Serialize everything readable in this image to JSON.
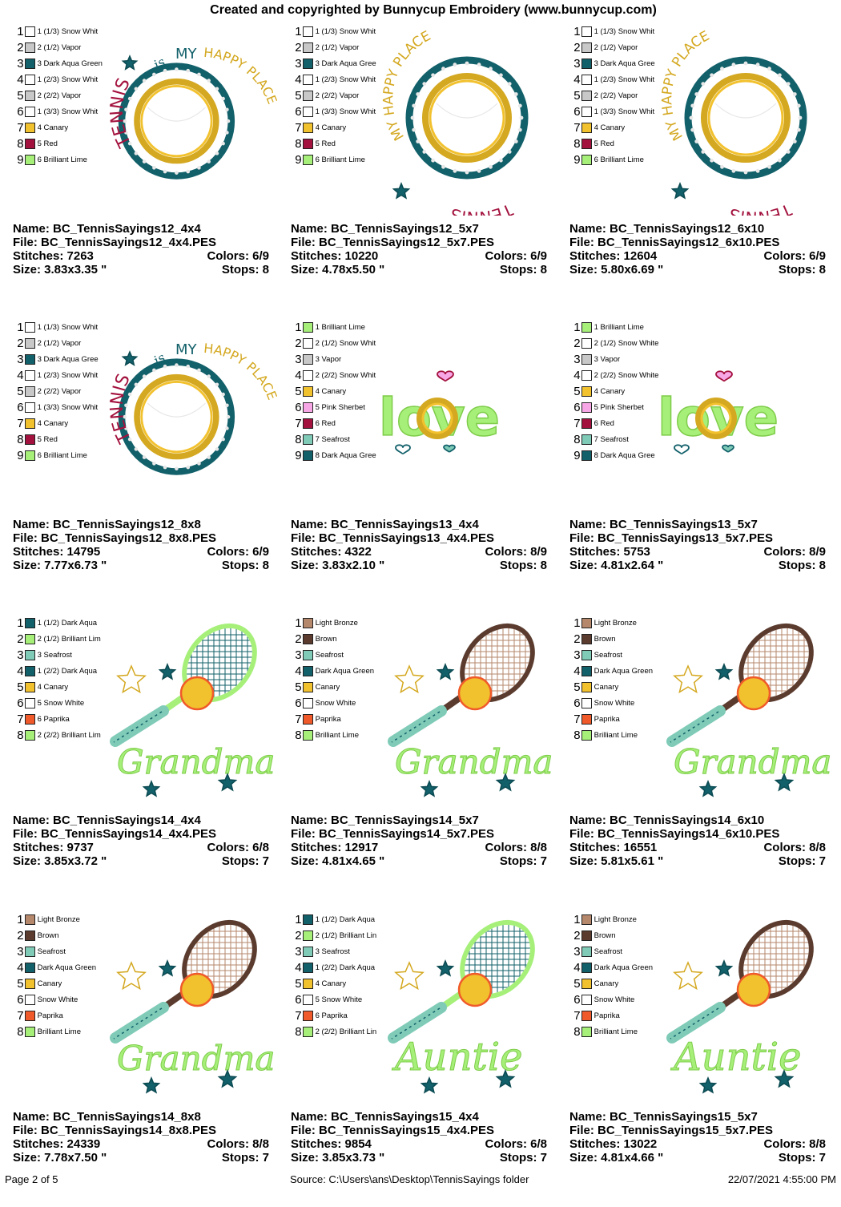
{
  "header": "Created and copyrighted by Bunnycup Embroidery (www.bunnycup.com)",
  "footer": {
    "page": "Page 2 of 5",
    "source": "Source: C:\\Users\\ans\\Desktop\\TennisSayings folder",
    "datetime": "22/07/2021 4:55:00 PM"
  },
  "designs": [
    {
      "art": "circle-a",
      "name": "Name: BC_TennisSayings12_4x4",
      "file": "File: BC_TennisSayings12_4x4.PES",
      "stitches": "Stitches: 7263",
      "colors": "Colors: 6/9",
      "size": "Size: 3.83x3.35 \"",
      "stops": "Stops: 8",
      "palette": [
        [
          "1",
          "1 (1/3) Snow Whit",
          "#ffffff"
        ],
        [
          "2",
          "2 (1/2) Vapor",
          "#c8c8c8"
        ],
        [
          "3",
          "3 Dark Aqua Green",
          "#12606a"
        ],
        [
          "4",
          "1 (2/3) Snow Whit",
          "#ffffff"
        ],
        [
          "5",
          "2 (2/2) Vapor",
          "#c8c8c8"
        ],
        [
          "6",
          "1 (3/3) Snow Whit",
          "#ffffff"
        ],
        [
          "7",
          "4 Canary",
          "#f2c12e"
        ],
        [
          "8",
          "5 Red",
          "#a3123e"
        ],
        [
          "9",
          "6 Brilliant Lime",
          "#a6f07a"
        ]
      ]
    },
    {
      "art": "circle-b",
      "name": "Name: BC_TennisSayings12_5x7",
      "file": "File: BC_TennisSayings12_5x7.PES",
      "stitches": "Stitches: 10220",
      "colors": "Colors: 6/9",
      "size": "Size: 4.78x5.50 \"",
      "stops": "Stops: 8",
      "palette": [
        [
          "1",
          "1 (1/3) Snow Whit",
          "#ffffff"
        ],
        [
          "2",
          "2 (1/2) Vapor",
          "#c8c8c8"
        ],
        [
          "3",
          "3 Dark Aqua Gree",
          "#12606a"
        ],
        [
          "4",
          "1 (2/3) Snow Whit",
          "#ffffff"
        ],
        [
          "5",
          "2 (2/2) Vapor",
          "#c8c8c8"
        ],
        [
          "6",
          "1 (3/3) Snow Whit",
          "#ffffff"
        ],
        [
          "7",
          "4 Canary",
          "#f2c12e"
        ],
        [
          "8",
          "5 Red",
          "#a3123e"
        ],
        [
          "9",
          "6 Brilliant Lime",
          "#a6f07a"
        ]
      ]
    },
    {
      "art": "circle-b",
      "name": "Name: BC_TennisSayings12_6x10",
      "file": "File: BC_TennisSayings12_6x10.PES",
      "stitches": "Stitches: 12604",
      "colors": "Colors: 6/9",
      "size": "Size: 5.80x6.69 \"",
      "stops": "Stops: 8",
      "palette": [
        [
          "1",
          "1 (1/3) Snow Whit",
          "#ffffff"
        ],
        [
          "2",
          "2 (1/2) Vapor",
          "#c8c8c8"
        ],
        [
          "3",
          "3 Dark Aqua Gree",
          "#12606a"
        ],
        [
          "4",
          "1 (2/3) Snow Whit",
          "#ffffff"
        ],
        [
          "5",
          "2 (2/2) Vapor",
          "#c8c8c8"
        ],
        [
          "6",
          "1 (3/3) Snow Whit",
          "#ffffff"
        ],
        [
          "7",
          "4 Canary",
          "#f2c12e"
        ],
        [
          "8",
          "5 Red",
          "#a3123e"
        ],
        [
          "9",
          "6 Brilliant Lime",
          "#a6f07a"
        ]
      ]
    },
    {
      "art": "circle-a",
      "name": "Name: BC_TennisSayings12_8x8",
      "file": "File: BC_TennisSayings12_8x8.PES",
      "stitches": "Stitches: 14795",
      "colors": "Colors: 6/9",
      "size": "Size: 7.77x6.73 \"",
      "stops": "Stops: 8",
      "palette": [
        [
          "1",
          "1 (1/3) Snow Whit",
          "#ffffff"
        ],
        [
          "2",
          "2 (1/2) Vapor",
          "#c8c8c8"
        ],
        [
          "3",
          "3 Dark Aqua Gree",
          "#12606a"
        ],
        [
          "4",
          "1 (2/3) Snow Whit",
          "#ffffff"
        ],
        [
          "5",
          "2 (2/2) Vapor",
          "#c8c8c8"
        ],
        [
          "6",
          "1 (3/3) Snow Whit",
          "#ffffff"
        ],
        [
          "7",
          "4 Canary",
          "#f2c12e"
        ],
        [
          "8",
          "5 Red",
          "#a3123e"
        ],
        [
          "9",
          "6 Brilliant Lime",
          "#a6f07a"
        ]
      ]
    },
    {
      "art": "love",
      "name": "Name: BC_TennisSayings13_4x4",
      "file": "File: BC_TennisSayings13_4x4.PES",
      "stitches": "Stitches: 4322",
      "colors": "Colors: 8/9",
      "size": "Size: 3.83x2.10 \"",
      "stops": "Stops: 8",
      "palette": [
        [
          "1",
          "1 Brilliant Lime",
          "#a6f07a"
        ],
        [
          "2",
          "2 (1/2) Snow Whit",
          "#ffffff"
        ],
        [
          "3",
          "3 Vapor",
          "#c8c8c8"
        ],
        [
          "4",
          "2 (2/2) Snow Whit",
          "#ffffff"
        ],
        [
          "5",
          "4 Canary",
          "#f2c12e"
        ],
        [
          "6",
          "5 Pink Sherbet",
          "#f7a6e6"
        ],
        [
          "7",
          "6 Red",
          "#a3123e"
        ],
        [
          "8",
          "7 Seafrost",
          "#7fcbb7"
        ],
        [
          "9",
          "8 Dark Aqua Gree",
          "#12606a"
        ]
      ]
    },
    {
      "art": "love",
      "name": "Name: BC_TennisSayings13_5x7",
      "file": "File: BC_TennisSayings13_5x7.PES",
      "stitches": "Stitches: 5753",
      "colors": "Colors: 8/9",
      "size": "Size: 4.81x2.64 \"",
      "stops": "Stops: 8",
      "palette": [
        [
          "1",
          "1 Brilliant Lime",
          "#a6f07a"
        ],
        [
          "2",
          "2 (1/2) Snow White",
          "#ffffff"
        ],
        [
          "3",
          "3 Vapor",
          "#c8c8c8"
        ],
        [
          "4",
          "2 (2/2) Snow White",
          "#ffffff"
        ],
        [
          "5",
          "4 Canary",
          "#f2c12e"
        ],
        [
          "6",
          "5 Pink Sherbet",
          "#f7a6e6"
        ],
        [
          "7",
          "6 Red",
          "#a3123e"
        ],
        [
          "8",
          "7 Seafrost",
          "#7fcbb7"
        ],
        [
          "9",
          "8 Dark Aqua Gree",
          "#12606a"
        ]
      ]
    },
    {
      "art": "grandma-lime",
      "name": "Name: BC_TennisSayings14_4x4",
      "file": "File: BC_TennisSayings14_4x4.PES",
      "stitches": "Stitches: 9737",
      "colors": "Colors: 6/8",
      "size": "Size: 3.85x3.72 \"",
      "stops": "Stops: 7",
      "palette": [
        [
          "1",
          "1 (1/2) Dark Aqua",
          "#12606a"
        ],
        [
          "2",
          "2 (1/2) Brilliant Lim",
          "#a6f07a"
        ],
        [
          "3",
          "3 Seafrost",
          "#7fcbb7"
        ],
        [
          "4",
          "1 (2/2) Dark Aqua",
          "#12606a"
        ],
        [
          "5",
          "4 Canary",
          "#f2c12e"
        ],
        [
          "6",
          "5 Snow White",
          "#ffffff"
        ],
        [
          "7",
          "6 Paprika",
          "#f05a2a"
        ],
        [
          "8",
          "2 (2/2) Brilliant Lim",
          "#a6f07a"
        ]
      ]
    },
    {
      "art": "grandma-brown",
      "name": "Name: BC_TennisSayings14_5x7",
      "file": "File: BC_TennisSayings14_5x7.PES",
      "stitches": "Stitches: 12917",
      "colors": "Colors: 8/8",
      "size": "Size: 4.81x4.65 \"",
      "stops": "Stops: 7",
      "palette": [
        [
          "1",
          "Light Bronze",
          "#b5876b"
        ],
        [
          "2",
          "Brown",
          "#5a3b2e"
        ],
        [
          "3",
          "Seafrost",
          "#7fcbb7"
        ],
        [
          "4",
          "Dark Aqua Green",
          "#12606a"
        ],
        [
          "5",
          "Canary",
          "#f2c12e"
        ],
        [
          "6",
          "Snow White",
          "#ffffff"
        ],
        [
          "7",
          "Paprika",
          "#f05a2a"
        ],
        [
          "8",
          "Brilliant Lime",
          "#a6f07a"
        ]
      ]
    },
    {
      "art": "grandma-brown",
      "name": "Name: BC_TennisSayings14_6x10",
      "file": "File: BC_TennisSayings14_6x10.PES",
      "stitches": "Stitches: 16551",
      "colors": "Colors: 8/8",
      "size": "Size: 5.81x5.61 \"",
      "stops": "Stops: 7",
      "palette": [
        [
          "1",
          "Light Bronze",
          "#b5876b"
        ],
        [
          "2",
          "Brown",
          "#5a3b2e"
        ],
        [
          "3",
          "Seafrost",
          "#7fcbb7"
        ],
        [
          "4",
          "Dark Aqua Green",
          "#12606a"
        ],
        [
          "5",
          "Canary",
          "#f2c12e"
        ],
        [
          "6",
          "Snow White",
          "#ffffff"
        ],
        [
          "7",
          "Paprika",
          "#f05a2a"
        ],
        [
          "8",
          "Brilliant Lime",
          "#a6f07a"
        ]
      ]
    },
    {
      "art": "grandma-brown",
      "name": "Name: BC_TennisSayings14_8x8",
      "file": "File: BC_TennisSayings14_8x8.PES",
      "stitches": "Stitches: 24339",
      "colors": "Colors: 8/8",
      "size": "Size: 7.78x7.50 \"",
      "stops": "Stops: 7",
      "palette": [
        [
          "1",
          "Light Bronze",
          "#b5876b"
        ],
        [
          "2",
          "Brown",
          "#5a3b2e"
        ],
        [
          "3",
          "Seafrost",
          "#7fcbb7"
        ],
        [
          "4",
          "Dark Aqua Green",
          "#12606a"
        ],
        [
          "5",
          "Canary",
          "#f2c12e"
        ],
        [
          "6",
          "Snow White",
          "#ffffff"
        ],
        [
          "7",
          "Paprika",
          "#f05a2a"
        ],
        [
          "8",
          "Brilliant Lime",
          "#a6f07a"
        ]
      ]
    },
    {
      "art": "auntie-lime",
      "name": "Name: BC_TennisSayings15_4x4",
      "file": "File: BC_TennisSayings15_4x4.PES",
      "stitches": "Stitches: 9854",
      "colors": "Colors: 6/8",
      "size": "Size: 3.85x3.73 \"",
      "stops": "Stops: 7",
      "palette": [
        [
          "1",
          "1 (1/2) Dark Aqua",
          "#12606a"
        ],
        [
          "2",
          "2 (1/2) Brilliant Lin",
          "#a6f07a"
        ],
        [
          "3",
          "3 Seafrost",
          "#7fcbb7"
        ],
        [
          "4",
          "1 (2/2) Dark Aqua",
          "#12606a"
        ],
        [
          "5",
          "4 Canary",
          "#f2c12e"
        ],
        [
          "6",
          "5 Snow White",
          "#ffffff"
        ],
        [
          "7",
          "6 Paprika",
          "#f05a2a"
        ],
        [
          "8",
          "2 (2/2) Brilliant Lin",
          "#a6f07a"
        ]
      ]
    },
    {
      "art": "auntie-brown",
      "name": "Name: BC_TennisSayings15_5x7",
      "file": "File: BC_TennisSayings15_5x7.PES",
      "stitches": "Stitches: 13022",
      "colors": "Colors: 8/8",
      "size": "Size: 4.81x4.66 \"",
      "stops": "Stops: 7",
      "palette": [
        [
          "1",
          "Light Bronze",
          "#b5876b"
        ],
        [
          "2",
          "Brown",
          "#5a3b2e"
        ],
        [
          "3",
          "Seafrost",
          "#7fcbb7"
        ],
        [
          "4",
          "Dark Aqua Green",
          "#12606a"
        ],
        [
          "5",
          "Canary",
          "#f2c12e"
        ],
        [
          "6",
          "Snow White",
          "#ffffff"
        ],
        [
          "7",
          "Paprika",
          "#f05a2a"
        ],
        [
          "8",
          "Brilliant Lime",
          "#a6f07a"
        ]
      ]
    }
  ],
  "art_text": {
    "tennis": "TENNIS",
    "is": "is",
    "my": "MY",
    "happy": "HAPPY PLACE",
    "love": "love",
    "grandma": "Grandma",
    "auntie": "Auntie"
  }
}
